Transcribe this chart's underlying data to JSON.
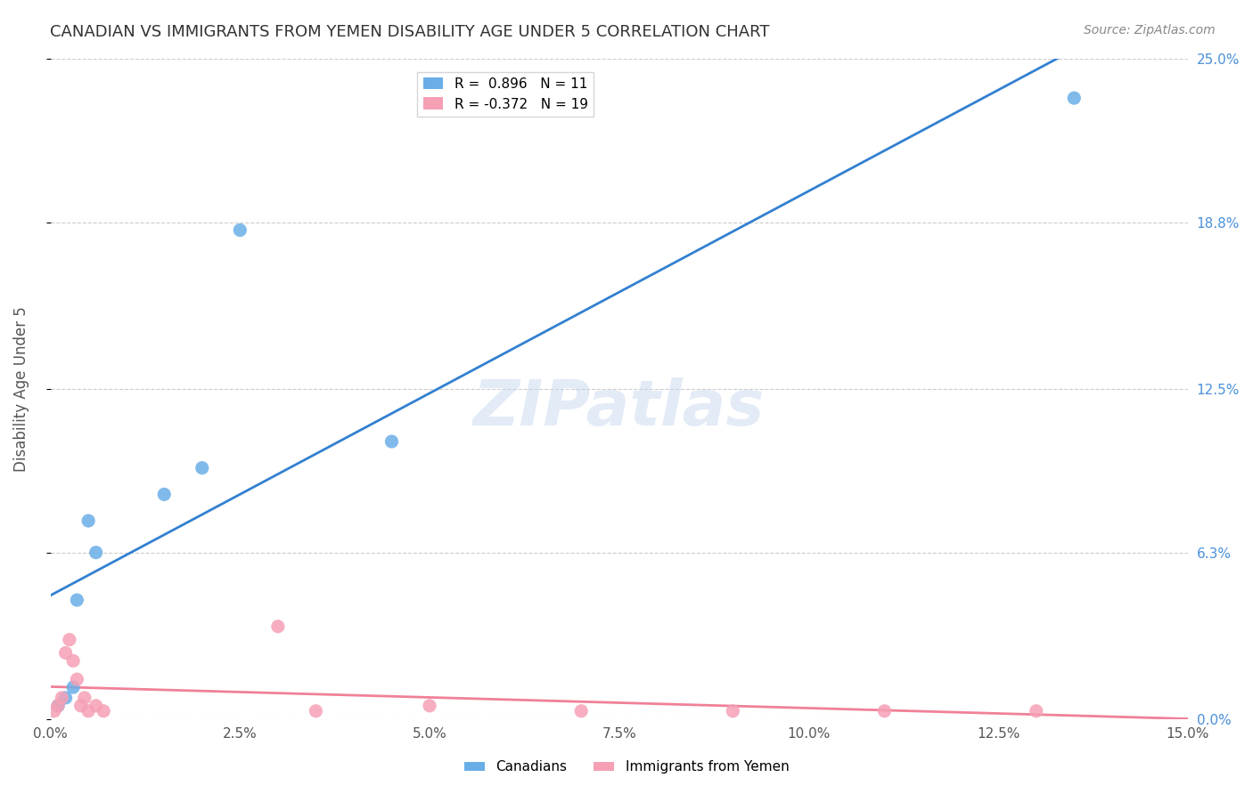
{
  "title": "CANADIAN VS IMMIGRANTS FROM YEMEN DISABILITY AGE UNDER 5 CORRELATION CHART",
  "source": "Source: ZipAtlas.com",
  "ylabel": "Disability Age Under 5",
  "watermark": "ZIPatlas",
  "ytick_labels": [
    "0.0%",
    "6.3%",
    "12.5%",
    "18.8%",
    "25.0%"
  ],
  "ytick_values": [
    0.0,
    6.3,
    12.5,
    18.8,
    25.0
  ],
  "xlim": [
    0.0,
    15.0
  ],
  "ylim": [
    0.0,
    25.0
  ],
  "canadian_R": 0.896,
  "canadian_N": 11,
  "immigrant_R": -0.372,
  "immigrant_N": 19,
  "canadian_color": "#6aaee8",
  "immigrant_color": "#f5a0b5",
  "canadian_line_color": "#3380d0",
  "immigrant_line_color": "#f08098",
  "background_color": "#ffffff",
  "grid_color": "#cccccc",
  "canadian_x": [
    0.1,
    0.2,
    0.3,
    0.35,
    0.5,
    0.6,
    1.5,
    2.0,
    2.5,
    4.5,
    13.5
  ],
  "canadian_y": [
    0.5,
    0.8,
    1.2,
    4.5,
    7.5,
    6.3,
    8.5,
    9.5,
    18.5,
    10.5,
    23.5
  ],
  "immigrant_x": [
    0.05,
    0.1,
    0.15,
    0.2,
    0.25,
    0.3,
    0.35,
    0.4,
    0.45,
    0.5,
    0.6,
    0.7,
    3.0,
    3.5,
    5.0,
    7.0,
    9.0,
    11.0,
    13.0
  ],
  "immigrant_y": [
    0.3,
    0.5,
    0.8,
    2.5,
    3.0,
    2.2,
    1.5,
    0.5,
    0.8,
    0.3,
    0.5,
    0.3,
    3.5,
    0.3,
    0.5,
    0.3,
    0.3,
    0.3,
    0.3
  ]
}
